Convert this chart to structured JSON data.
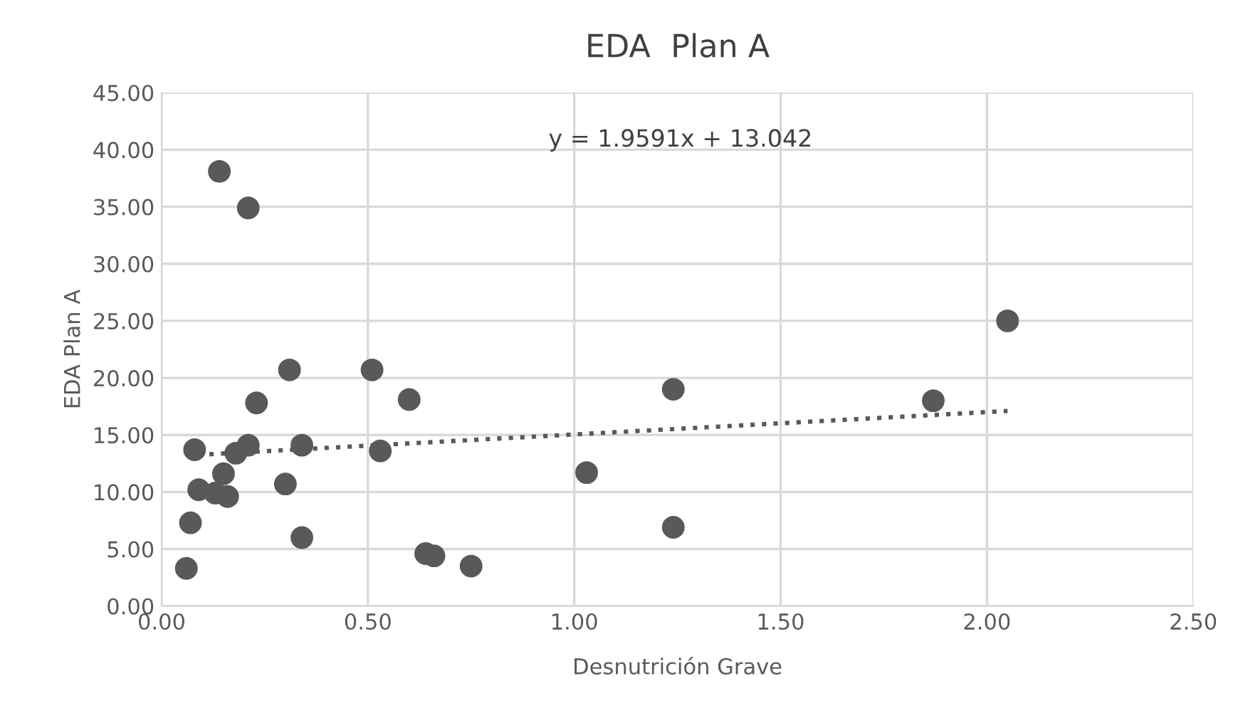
{
  "chart_data": {
    "type": "scatter",
    "title": "EDA  Plan A",
    "xlabel": "Desnutrición Grave",
    "ylabel": "EDA Plan A",
    "xlim": [
      0,
      2.5
    ],
    "ylim": [
      0,
      45
    ],
    "xticks": [
      {
        "value": 0,
        "label": "0.00"
      },
      {
        "value": 0.5,
        "label": "0.50"
      },
      {
        "value": 1,
        "label": "1.00"
      },
      {
        "value": 1.5,
        "label": "1.50"
      },
      {
        "value": 2,
        "label": "2.00"
      },
      {
        "value": 2.5,
        "label": "2.50"
      }
    ],
    "yticks": [
      {
        "value": 0,
        "label": "0.00"
      },
      {
        "value": 5,
        "label": "5.00"
      },
      {
        "value": 10,
        "label": "10.00"
      },
      {
        "value": 15,
        "label": "15.00"
      },
      {
        "value": 20,
        "label": "20.00"
      },
      {
        "value": 25,
        "label": "25.00"
      },
      {
        "value": 30,
        "label": "30.00"
      },
      {
        "value": 35,
        "label": "35.00"
      },
      {
        "value": 40,
        "label": "40.00"
      },
      {
        "value": 45,
        "label": "45.00"
      }
    ],
    "grid": true,
    "marker": "circle",
    "annotations": [
      "y = 1.9591x + 13.042"
    ],
    "series": [
      {
        "color": "#595959",
        "x": [
          0.14,
          0.21,
          0.31,
          0.51,
          0.6,
          0.23,
          0.08,
          0.18,
          0.21,
          0.34,
          0.53,
          0.15,
          0.09,
          0.13,
          0.16,
          0.3,
          0.07,
          0.34,
          0.06,
          0.64,
          0.66,
          0.75,
          1.03,
          1.24,
          1.24,
          1.87,
          2.05
        ],
        "values": [
          38.1,
          34.9,
          20.7,
          20.7,
          18.1,
          17.8,
          13.7,
          13.4,
          14.1,
          14.1,
          13.6,
          11.6,
          10.2,
          9.9,
          9.6,
          10.7,
          7.3,
          6.0,
          3.3,
          4.6,
          4.4,
          3.5,
          11.7,
          19.0,
          6.9,
          18.0,
          25.0
        ]
      },
      {
        "type": "line",
        "color": "#595959",
        "line_style": "dotted",
        "marker": "none",
        "x": [
          0.06,
          2.05
        ],
        "values": [
          13.2,
          17.1
        ]
      }
    ]
  }
}
